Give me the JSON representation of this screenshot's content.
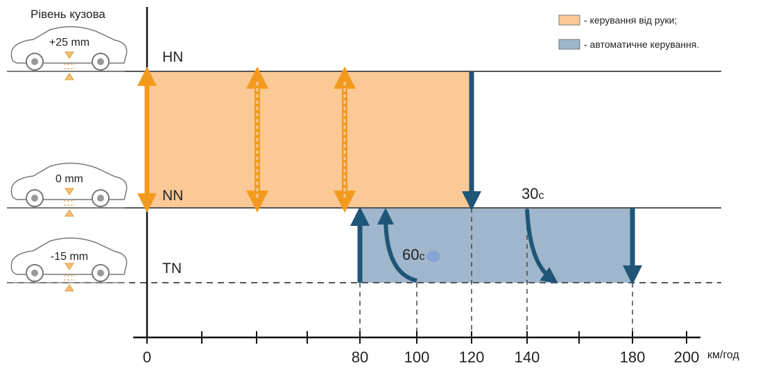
{
  "y_axis_title": "Рівень кузова",
  "levels": [
    {
      "name": "HN",
      "offset": "+25 mm"
    },
    {
      "name": "NN",
      "offset": "0 mm"
    },
    {
      "name": "TN",
      "offset": "-15 mm"
    }
  ],
  "legend": [
    "- керування від руки;",
    "- автоматичне керування."
  ],
  "annotations": [
    {
      "value": 30,
      "unit": "с"
    },
    {
      "value": 60,
      "unit": "с"
    }
  ],
  "x_axis": {
    "ticks": [
      0,
      80,
      100,
      120,
      140,
      180,
      200
    ],
    "unit": "км/год"
  }
}
